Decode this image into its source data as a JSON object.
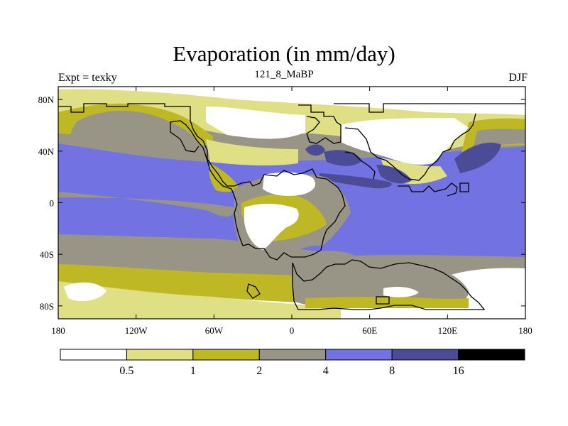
{
  "title": "Evaporation (in mm/day)",
  "left_label": "Expt = texky",
  "center_label": "121_8_MaBP",
  "right_label": "DJF",
  "x_ticks": [
    "180",
    "120W",
    "60W",
    "0",
    "60E",
    "120E",
    "180"
  ],
  "y_ticks": [
    "80N",
    "40N",
    "0",
    "40S",
    "80S"
  ],
  "colorbar": {
    "labels": [
      "0.5",
      "1",
      "2",
      "4",
      "8",
      "16"
    ],
    "colors": [
      "#ffffff",
      "#dfdf86",
      "#bdb824",
      "#999586",
      "#7272e2",
      "#4b4b98",
      "#000000"
    ]
  },
  "colors": {
    "white": "#ffffff",
    "light_yellow": "#dfdf86",
    "olive": "#bdb824",
    "gray": "#999586",
    "blue": "#7272e2",
    "dark_blue": "#4b4b98",
    "coast": "#000000"
  }
}
